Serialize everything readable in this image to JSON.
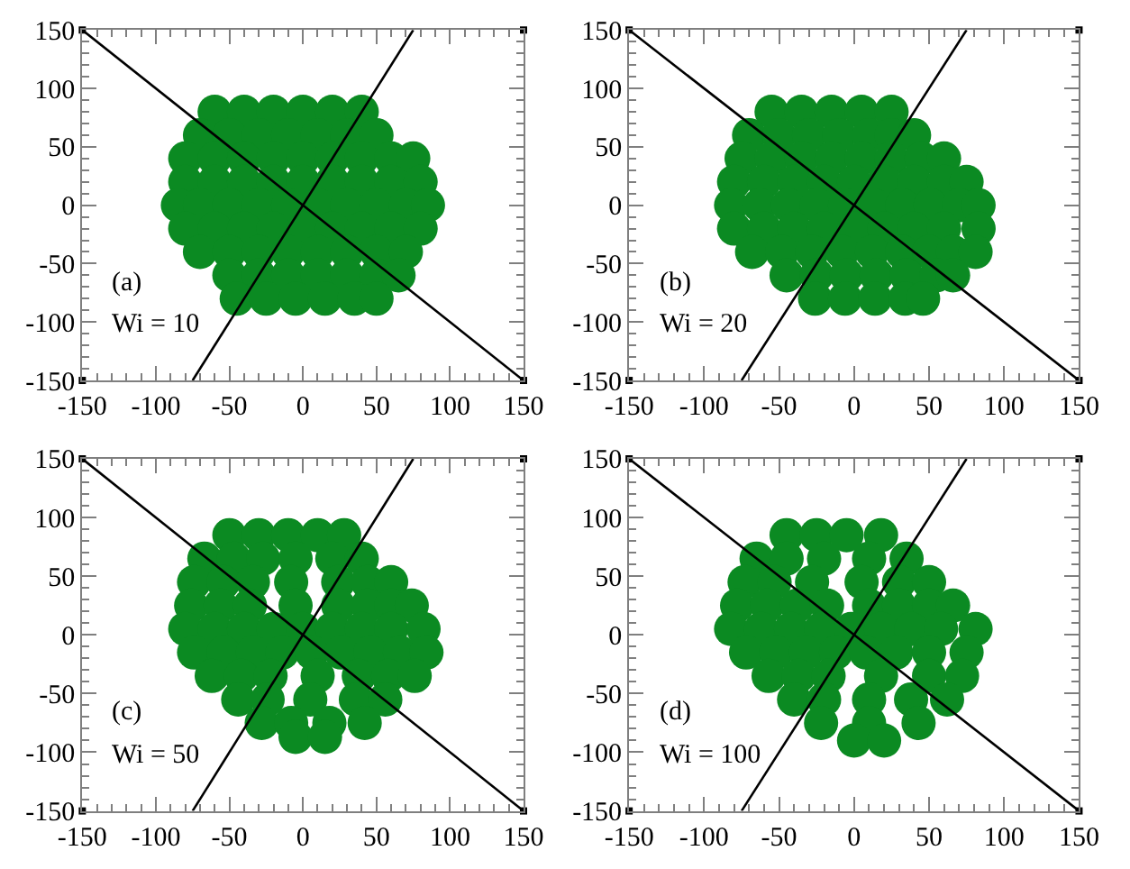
{
  "chart_data": [
    {
      "type": "scatter",
      "line_style": "solid",
      "annotations": [
        "(a)",
        "Wi = 10"
      ],
      "xlim": [
        -150,
        150
      ],
      "ylim": [
        -150,
        150
      ],
      "xticks": [
        -150,
        {
          "value": -140,
          "label": null
        },
        {
          "value": -130,
          "label": null
        },
        {
          "value": -120,
          "label": null
        },
        {
          "value": -110,
          "label": null
        },
        -100,
        {
          "value": -90,
          "label": null
        },
        {
          "value": -80,
          "label": null
        },
        {
          "value": -70,
          "label": null
        },
        {
          "value": -60,
          "label": null
        },
        -50,
        {
          "value": -40,
          "label": null
        },
        {
          "value": -30,
          "label": null
        },
        {
          "value": -20,
          "label": null
        },
        {
          "value": -10,
          "label": null
        },
        0,
        {
          "value": 10,
          "label": null
        },
        {
          "value": 20,
          "label": null
        },
        {
          "value": 30,
          "label": null
        },
        {
          "value": 40,
          "label": null
        },
        50,
        {
          "value": 60,
          "label": null
        },
        {
          "value": 70,
          "label": null
        },
        {
          "value": 80,
          "label": null
        },
        {
          "value": 90,
          "label": null
        },
        100,
        {
          "value": 110,
          "label": null
        },
        {
          "value": 120,
          "label": null
        },
        {
          "value": 130,
          "label": null
        },
        {
          "value": 140,
          "label": null
        },
        150
      ],
      "yticks": [
        -150,
        {
          "value": -140,
          "label": null
        },
        {
          "value": -130,
          "label": null
        },
        {
          "value": -120,
          "label": null
        },
        {
          "value": -110,
          "label": null
        },
        -100,
        {
          "value": -90,
          "label": null
        },
        {
          "value": -80,
          "label": null
        },
        {
          "value": -70,
          "label": null
        },
        {
          "value": -60,
          "label": null
        },
        -50,
        {
          "value": -40,
          "label": null
        },
        {
          "value": -30,
          "label": null
        },
        {
          "value": -20,
          "label": null
        },
        {
          "value": -10,
          "label": null
        },
        0,
        {
          "value": 10,
          "label": null
        },
        {
          "value": 20,
          "label": null
        },
        {
          "value": 30,
          "label": null
        },
        {
          "value": 40,
          "label": null
        },
        50,
        {
          "value": 60,
          "label": null
        },
        {
          "value": 70,
          "label": null
        },
        {
          "value": 80,
          "label": null
        },
        {
          "value": 90,
          "label": null
        },
        100,
        {
          "value": 110,
          "label": null
        },
        {
          "value": 120,
          "label": null
        },
        {
          "value": 130,
          "label": null
        },
        {
          "value": 140,
          "label": null
        },
        150
      ],
      "series": [
        {
          "marker": "circle",
          "color": "#0b8a22",
          "x": [
            -60,
            -40,
            -20,
            0,
            20,
            40,
            -70,
            -50,
            -30,
            -10,
            10,
            30,
            50,
            -80,
            -60,
            -40,
            -20,
            0,
            20,
            40,
            60,
            75,
            -80,
            -60,
            -40,
            -20,
            0,
            20,
            40,
            60,
            80,
            -85,
            -70,
            -50,
            -30,
            -10,
            10,
            30,
            50,
            70,
            85,
            -80,
            -60,
            -40,
            -20,
            0,
            20,
            40,
            60,
            80,
            -70,
            -50,
            -30,
            -10,
            10,
            30,
            50,
            70,
            -50,
            -30,
            -10,
            10,
            30,
            50,
            65,
            -45,
            -25,
            -5,
            15,
            35,
            50
          ],
          "values": [
            80,
            80,
            80,
            80,
            80,
            80,
            60,
            60,
            60,
            60,
            60,
            60,
            60,
            40,
            40,
            40,
            40,
            40,
            40,
            40,
            40,
            40,
            20,
            20,
            20,
            20,
            20,
            20,
            20,
            20,
            20,
            0,
            0,
            0,
            0,
            0,
            0,
            0,
            0,
            0,
            0,
            -20,
            -20,
            -20,
            -20,
            -20,
            -20,
            -20,
            -20,
            -20,
            -40,
            -40,
            -40,
            -40,
            -40,
            -40,
            -40,
            -40,
            -60,
            -60,
            -60,
            -60,
            -60,
            -60,
            -60,
            -80,
            -80,
            -80,
            -80,
            -80,
            -80
          ]
        },
        {
          "type": "line",
          "color": "#000000",
          "x": [
            -150,
            150
          ],
          "values": [
            150,
            -150
          ]
        },
        {
          "type": "line",
          "color": "#000000",
          "x": [
            -75,
            75
          ],
          "values": [
            -150,
            150
          ]
        },
        {
          "marker": "square",
          "color": "#000000",
          "x": [
            -150,
            150,
            -150,
            150
          ],
          "values": [
            150,
            150,
            -150,
            -150
          ]
        }
      ]
    },
    {
      "type": "scatter",
      "line_style": "solid",
      "annotations": [
        "(b)",
        "Wi = 20"
      ],
      "xlim": [
        -150,
        150
      ],
      "ylim": [
        -150,
        150
      ],
      "xticks": [
        -150,
        {
          "value": -140,
          "label": null
        },
        {
          "value": -130,
          "label": null
        },
        {
          "value": -120,
          "label": null
        },
        {
          "value": -110,
          "label": null
        },
        -100,
        {
          "value": -90,
          "label": null
        },
        {
          "value": -80,
          "label": null
        },
        {
          "value": -70,
          "label": null
        },
        {
          "value": -60,
          "label": null
        },
        -50,
        {
          "value": -40,
          "label": null
        },
        {
          "value": -30,
          "label": null
        },
        {
          "value": -20,
          "label": null
        },
        {
          "value": -10,
          "label": null
        },
        0,
        {
          "value": 10,
          "label": null
        },
        {
          "value": 20,
          "label": null
        },
        {
          "value": 30,
          "label": null
        },
        {
          "value": 40,
          "label": null
        },
        50,
        {
          "value": 60,
          "label": null
        },
        {
          "value": 70,
          "label": null
        },
        {
          "value": 80,
          "label": null
        },
        {
          "value": 90,
          "label": null
        },
        100,
        {
          "value": 110,
          "label": null
        },
        {
          "value": 120,
          "label": null
        },
        {
          "value": 130,
          "label": null
        },
        {
          "value": 140,
          "label": null
        },
        150
      ],
      "yticks": [
        -150,
        {
          "value": -140,
          "label": null
        },
        {
          "value": -130,
          "label": null
        },
        {
          "value": -120,
          "label": null
        },
        {
          "value": -110,
          "label": null
        },
        -100,
        {
          "value": -90,
          "label": null
        },
        {
          "value": -80,
          "label": null
        },
        {
          "value": -70,
          "label": null
        },
        {
          "value": -60,
          "label": null
        },
        -50,
        {
          "value": -40,
          "label": null
        },
        {
          "value": -30,
          "label": null
        },
        {
          "value": -20,
          "label": null
        },
        {
          "value": -10,
          "label": null
        },
        0,
        {
          "value": 10,
          "label": null
        },
        {
          "value": 20,
          "label": null
        },
        {
          "value": 30,
          "label": null
        },
        {
          "value": 40,
          "label": null
        },
        50,
        {
          "value": 60,
          "label": null
        },
        {
          "value": 70,
          "label": null
        },
        {
          "value": 80,
          "label": null
        },
        {
          "value": 90,
          "label": null
        },
        100,
        {
          "value": 110,
          "label": null
        },
        {
          "value": 120,
          "label": null
        },
        {
          "value": 130,
          "label": null
        },
        {
          "value": 140,
          "label": null
        },
        150
      ],
      "series": [
        {
          "marker": "circle",
          "color": "#0b8a22",
          "x": [
            -55,
            -35,
            -15,
            5,
            25,
            -70,
            -50,
            -30,
            -10,
            10,
            25,
            40,
            -75,
            -55,
            -35,
            -15,
            5,
            25,
            45,
            60,
            -80,
            -60,
            -40,
            -20,
            0,
            20,
            40,
            60,
            75,
            -82,
            -63,
            -44,
            -25,
            -6,
            13,
            32,
            51,
            70,
            83,
            -80,
            -60,
            -40,
            -20,
            0,
            20,
            40,
            60,
            83,
            -68,
            -48,
            -28,
            -8,
            12,
            32,
            50,
            66,
            81,
            -45,
            -25,
            -5,
            15,
            35,
            55,
            66,
            -26,
            -6,
            14,
            34,
            46
          ],
          "values": [
            80,
            80,
            80,
            80,
            80,
            60,
            60,
            60,
            60,
            60,
            60,
            60,
            40,
            40,
            40,
            40,
            40,
            40,
            40,
            40,
            20,
            20,
            20,
            20,
            20,
            20,
            20,
            20,
            20,
            0,
            0,
            0,
            0,
            0,
            0,
            0,
            0,
            0,
            0,
            -20,
            -20,
            -20,
            -20,
            -20,
            -20,
            -20,
            -20,
            -20,
            -40,
            -40,
            -40,
            -40,
            -40,
            -40,
            -40,
            -40,
            -40,
            -60,
            -60,
            -60,
            -60,
            -60,
            -60,
            -60,
            -80,
            -80,
            -80,
            -80,
            -80
          ]
        },
        {
          "type": "line",
          "color": "#000000",
          "x": [
            -150,
            150
          ],
          "values": [
            150,
            -150
          ]
        },
        {
          "type": "line",
          "color": "#000000",
          "x": [
            -75,
            75
          ],
          "values": [
            -150,
            150
          ]
        },
        {
          "marker": "square",
          "color": "#000000",
          "x": [
            -150,
            150,
            -150,
            150
          ],
          "values": [
            150,
            150,
            -150,
            -150
          ]
        }
      ]
    },
    {
      "type": "scatter",
      "line_style": "solid",
      "annotations": [
        "(c)",
        "Wi = 50"
      ],
      "xlim": [
        -150,
        150
      ],
      "ylim": [
        -150,
        150
      ],
      "xticks": [
        -150,
        {
          "value": -140,
          "label": null
        },
        {
          "value": -130,
          "label": null
        },
        {
          "value": -120,
          "label": null
        },
        {
          "value": -110,
          "label": null
        },
        -100,
        {
          "value": -90,
          "label": null
        },
        {
          "value": -80,
          "label": null
        },
        {
          "value": -70,
          "label": null
        },
        {
          "value": -60,
          "label": null
        },
        -50,
        {
          "value": -40,
          "label": null
        },
        {
          "value": -30,
          "label": null
        },
        {
          "value": -20,
          "label": null
        },
        {
          "value": -10,
          "label": null
        },
        0,
        {
          "value": 10,
          "label": null
        },
        {
          "value": 20,
          "label": null
        },
        {
          "value": 30,
          "label": null
        },
        {
          "value": 40,
          "label": null
        },
        50,
        {
          "value": 60,
          "label": null
        },
        {
          "value": 70,
          "label": null
        },
        {
          "value": 80,
          "label": null
        },
        {
          "value": 90,
          "label": null
        },
        100,
        {
          "value": 110,
          "label": null
        },
        {
          "value": 120,
          "label": null
        },
        {
          "value": 130,
          "label": null
        },
        {
          "value": 140,
          "label": null
        },
        150
      ],
      "yticks": [
        -150,
        {
          "value": -140,
          "label": null
        },
        {
          "value": -130,
          "label": null
        },
        {
          "value": -120,
          "label": null
        },
        {
          "value": -110,
          "label": null
        },
        -100,
        {
          "value": -90,
          "label": null
        },
        {
          "value": -80,
          "label": null
        },
        {
          "value": -70,
          "label": null
        },
        {
          "value": -60,
          "label": null
        },
        -50,
        {
          "value": -40,
          "label": null
        },
        {
          "value": -30,
          "label": null
        },
        {
          "value": -20,
          "label": null
        },
        {
          "value": -10,
          "label": null
        },
        0,
        {
          "value": 10,
          "label": null
        },
        {
          "value": 20,
          "label": null
        },
        {
          "value": 30,
          "label": null
        },
        {
          "value": 40,
          "label": null
        },
        50,
        {
          "value": 60,
          "label": null
        },
        {
          "value": 70,
          "label": null
        },
        {
          "value": 80,
          "label": null
        },
        {
          "value": 90,
          "label": null
        },
        100,
        {
          "value": 110,
          "label": null
        },
        {
          "value": 120,
          "label": null
        },
        {
          "value": 130,
          "label": null
        },
        {
          "value": 140,
          "label": null
        },
        150
      ],
      "series": [
        {
          "marker": "circle",
          "color": "#0b8a22",
          "x": [
            -50,
            -30,
            -10,
            10,
            28,
            -67,
            -47,
            -27,
            -5,
            20,
            40,
            -74,
            -54,
            -34,
            -8,
            24,
            44,
            60,
            -76,
            -56,
            -36,
            -5,
            24,
            44,
            60,
            74,
            -80,
            -60,
            -40,
            -20,
            0,
            20,
            40,
            60,
            82,
            -74,
            -54,
            -34,
            -14,
            6,
            26,
            46,
            66,
            84,
            -62,
            -42,
            -22,
            10,
            38,
            58,
            76,
            -44,
            -24,
            5,
            36,
            56,
            -28,
            -8,
            18,
            42,
            -5,
            15
          ],
          "values": [
            85,
            85,
            85,
            85,
            85,
            65,
            65,
            65,
            65,
            65,
            65,
            45,
            45,
            45,
            45,
            45,
            45,
            45,
            25,
            25,
            25,
            25,
            25,
            25,
            25,
            25,
            5,
            5,
            5,
            5,
            5,
            5,
            5,
            5,
            5,
            -15,
            -15,
            -15,
            -15,
            -15,
            -15,
            -15,
            -15,
            -15,
            -35,
            -35,
            -35,
            -35,
            -35,
            -35,
            -35,
            -55,
            -55,
            -55,
            -55,
            -55,
            -75,
            -75,
            -75,
            -75,
            -87,
            -87
          ]
        },
        {
          "type": "line",
          "color": "#000000",
          "x": [
            -150,
            150
          ],
          "values": [
            150,
            -150
          ]
        },
        {
          "type": "line",
          "color": "#000000",
          "x": [
            -75,
            75
          ],
          "values": [
            -150,
            150
          ]
        },
        {
          "marker": "square",
          "color": "#000000",
          "x": [
            -150,
            150,
            -150,
            150
          ],
          "values": [
            150,
            150,
            -150,
            -150
          ]
        }
      ]
    },
    {
      "type": "scatter",
      "line_style": "solid",
      "annotations": [
        "(d)",
        "Wi = 100"
      ],
      "xlim": [
        -150,
        150
      ],
      "ylim": [
        -150,
        150
      ],
      "xticks": [
        -150,
        {
          "value": -140,
          "label": null
        },
        {
          "value": -130,
          "label": null
        },
        {
          "value": -120,
          "label": null
        },
        {
          "value": -110,
          "label": null
        },
        -100,
        {
          "value": -90,
          "label": null
        },
        {
          "value": -80,
          "label": null
        },
        {
          "value": -70,
          "label": null
        },
        {
          "value": -60,
          "label": null
        },
        -50,
        {
          "value": -40,
          "label": null
        },
        {
          "value": -30,
          "label": null
        },
        {
          "value": -20,
          "label": null
        },
        {
          "value": -10,
          "label": null
        },
        0,
        {
          "value": 10,
          "label": null
        },
        {
          "value": 20,
          "label": null
        },
        {
          "value": 30,
          "label": null
        },
        {
          "value": 40,
          "label": null
        },
        50,
        {
          "value": 60,
          "label": null
        },
        {
          "value": 70,
          "label": null
        },
        {
          "value": 80,
          "label": null
        },
        {
          "value": 90,
          "label": null
        },
        100,
        {
          "value": 110,
          "label": null
        },
        {
          "value": 120,
          "label": null
        },
        {
          "value": 130,
          "label": null
        },
        {
          "value": 140,
          "label": null
        },
        150
      ],
      "yticks": [
        -150,
        {
          "value": -140,
          "label": null
        },
        {
          "value": -130,
          "label": null
        },
        {
          "value": -120,
          "label": null
        },
        {
          "value": -110,
          "label": null
        },
        -100,
        {
          "value": -90,
          "label": null
        },
        {
          "value": -80,
          "label": null
        },
        {
          "value": -70,
          "label": null
        },
        {
          "value": -60,
          "label": null
        },
        -50,
        {
          "value": -40,
          "label": null
        },
        {
          "value": -30,
          "label": null
        },
        {
          "value": -20,
          "label": null
        },
        {
          "value": -10,
          "label": null
        },
        0,
        {
          "value": 10,
          "label": null
        },
        {
          "value": 20,
          "label": null
        },
        {
          "value": 30,
          "label": null
        },
        {
          "value": 40,
          "label": null
        },
        50,
        {
          "value": 60,
          "label": null
        },
        {
          "value": 70,
          "label": null
        },
        {
          "value": 80,
          "label": null
        },
        {
          "value": 90,
          "label": null
        },
        100,
        {
          "value": 110,
          "label": null
        },
        {
          "value": 120,
          "label": null
        },
        {
          "value": 130,
          "label": null
        },
        {
          "value": 140,
          "label": null
        },
        150
      ],
      "series": [
        {
          "marker": "circle",
          "color": "#0b8a22",
          "x": [
            -45,
            -25,
            -5,
            18,
            -65,
            -45,
            -20,
            10,
            35,
            -73,
            -53,
            -28,
            5,
            30,
            50,
            -78,
            -58,
            -38,
            -18,
            10,
            30,
            50,
            66,
            -82,
            -62,
            -42,
            -22,
            -2,
            18,
            38,
            58,
            81,
            -72,
            -52,
            -32,
            -12,
            8,
            28,
            50,
            75,
            -57,
            -37,
            -17,
            18,
            50,
            72,
            -40,
            -20,
            10,
            38,
            62,
            -22,
            10,
            43,
            0,
            20
          ],
          "values": [
            85,
            85,
            85,
            85,
            65,
            65,
            65,
            65,
            65,
            45,
            45,
            45,
            45,
            45,
            45,
            25,
            25,
            25,
            25,
            25,
            25,
            25,
            25,
            5,
            5,
            5,
            5,
            5,
            5,
            5,
            5,
            5,
            -15,
            -15,
            -15,
            -15,
            -15,
            -15,
            -15,
            -15,
            -35,
            -35,
            -35,
            -35,
            -35,
            -35,
            -55,
            -55,
            -55,
            -55,
            -55,
            -75,
            -75,
            -75,
            -90,
            -90
          ]
        },
        {
          "type": "line",
          "color": "#000000",
          "x": [
            -150,
            150
          ],
          "values": [
            150,
            -150
          ]
        },
        {
          "type": "line",
          "color": "#000000",
          "x": [
            -75,
            75
          ],
          "values": [
            -150,
            150
          ]
        },
        {
          "marker": "square",
          "color": "#000000",
          "x": [
            -150,
            150,
            -150,
            150
          ],
          "values": [
            150,
            150,
            -150,
            -150
          ]
        }
      ]
    }
  ]
}
